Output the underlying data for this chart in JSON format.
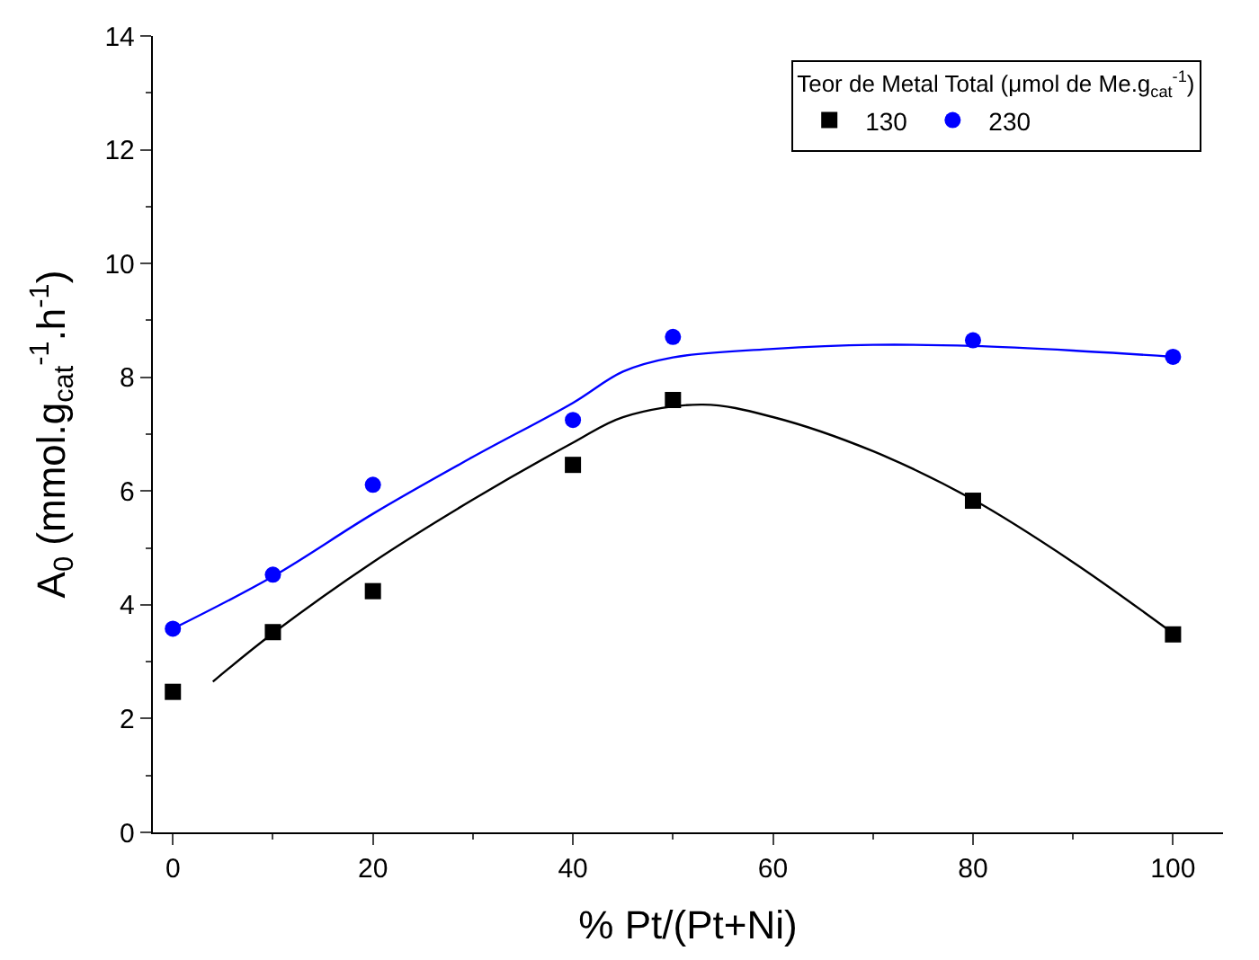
{
  "chart_data": {
    "type": "scatter",
    "xlabel": "% Pt/(Pt+Ni)",
    "ylabel": "A$_{0}$ (mmol.g$_{cat}$$^{-1}$.h$^{-1}$)",
    "legend_title": "Teor de Metal Total (μmol de Me.g$_{cat}$$^{-1}$)",
    "legend": "top right",
    "xlim": [
      -2,
      105
    ],
    "xticks": [
      0,
      20,
      40,
      60,
      80,
      100
    ],
    "ylim": [
      0,
      14
    ],
    "yticks": [
      0,
      2,
      4,
      6,
      8,
      10,
      12,
      14
    ],
    "series": [
      {
        "name": "130",
        "color": "#000000",
        "marker": "square",
        "x": [
          0,
          10,
          20,
          40,
          50,
          80,
          100
        ],
        "values": [
          2.47,
          3.52,
          4.24,
          6.46,
          7.6,
          5.83,
          3.48
        ]
      },
      {
        "name": "230",
        "color": "#0000ff",
        "marker": "circle",
        "x": [
          0,
          10,
          20,
          40,
          50,
          80,
          100
        ],
        "values": [
          3.58,
          4.53,
          6.11,
          7.25,
          8.71,
          8.65,
          8.36
        ]
      },
      {
        "type": "line",
        "color": "#000000",
        "x": [
          4,
          10,
          20,
          30,
          40,
          45,
          53,
          60,
          70,
          80,
          90,
          100
        ],
        "values": [
          2.65,
          3.5,
          4.75,
          5.85,
          6.85,
          7.3,
          7.52,
          7.3,
          6.7,
          5.85,
          4.75,
          3.5
        ]
      },
      {
        "type": "line",
        "color": "#0000ff",
        "x": [
          0,
          10,
          20,
          30,
          40,
          45,
          50,
          60,
          70,
          80,
          90,
          100
        ],
        "values": [
          3.58,
          4.5,
          5.6,
          6.6,
          7.55,
          8.1,
          8.35,
          8.5,
          8.57,
          8.55,
          8.47,
          8.36
        ]
      }
    ]
  }
}
